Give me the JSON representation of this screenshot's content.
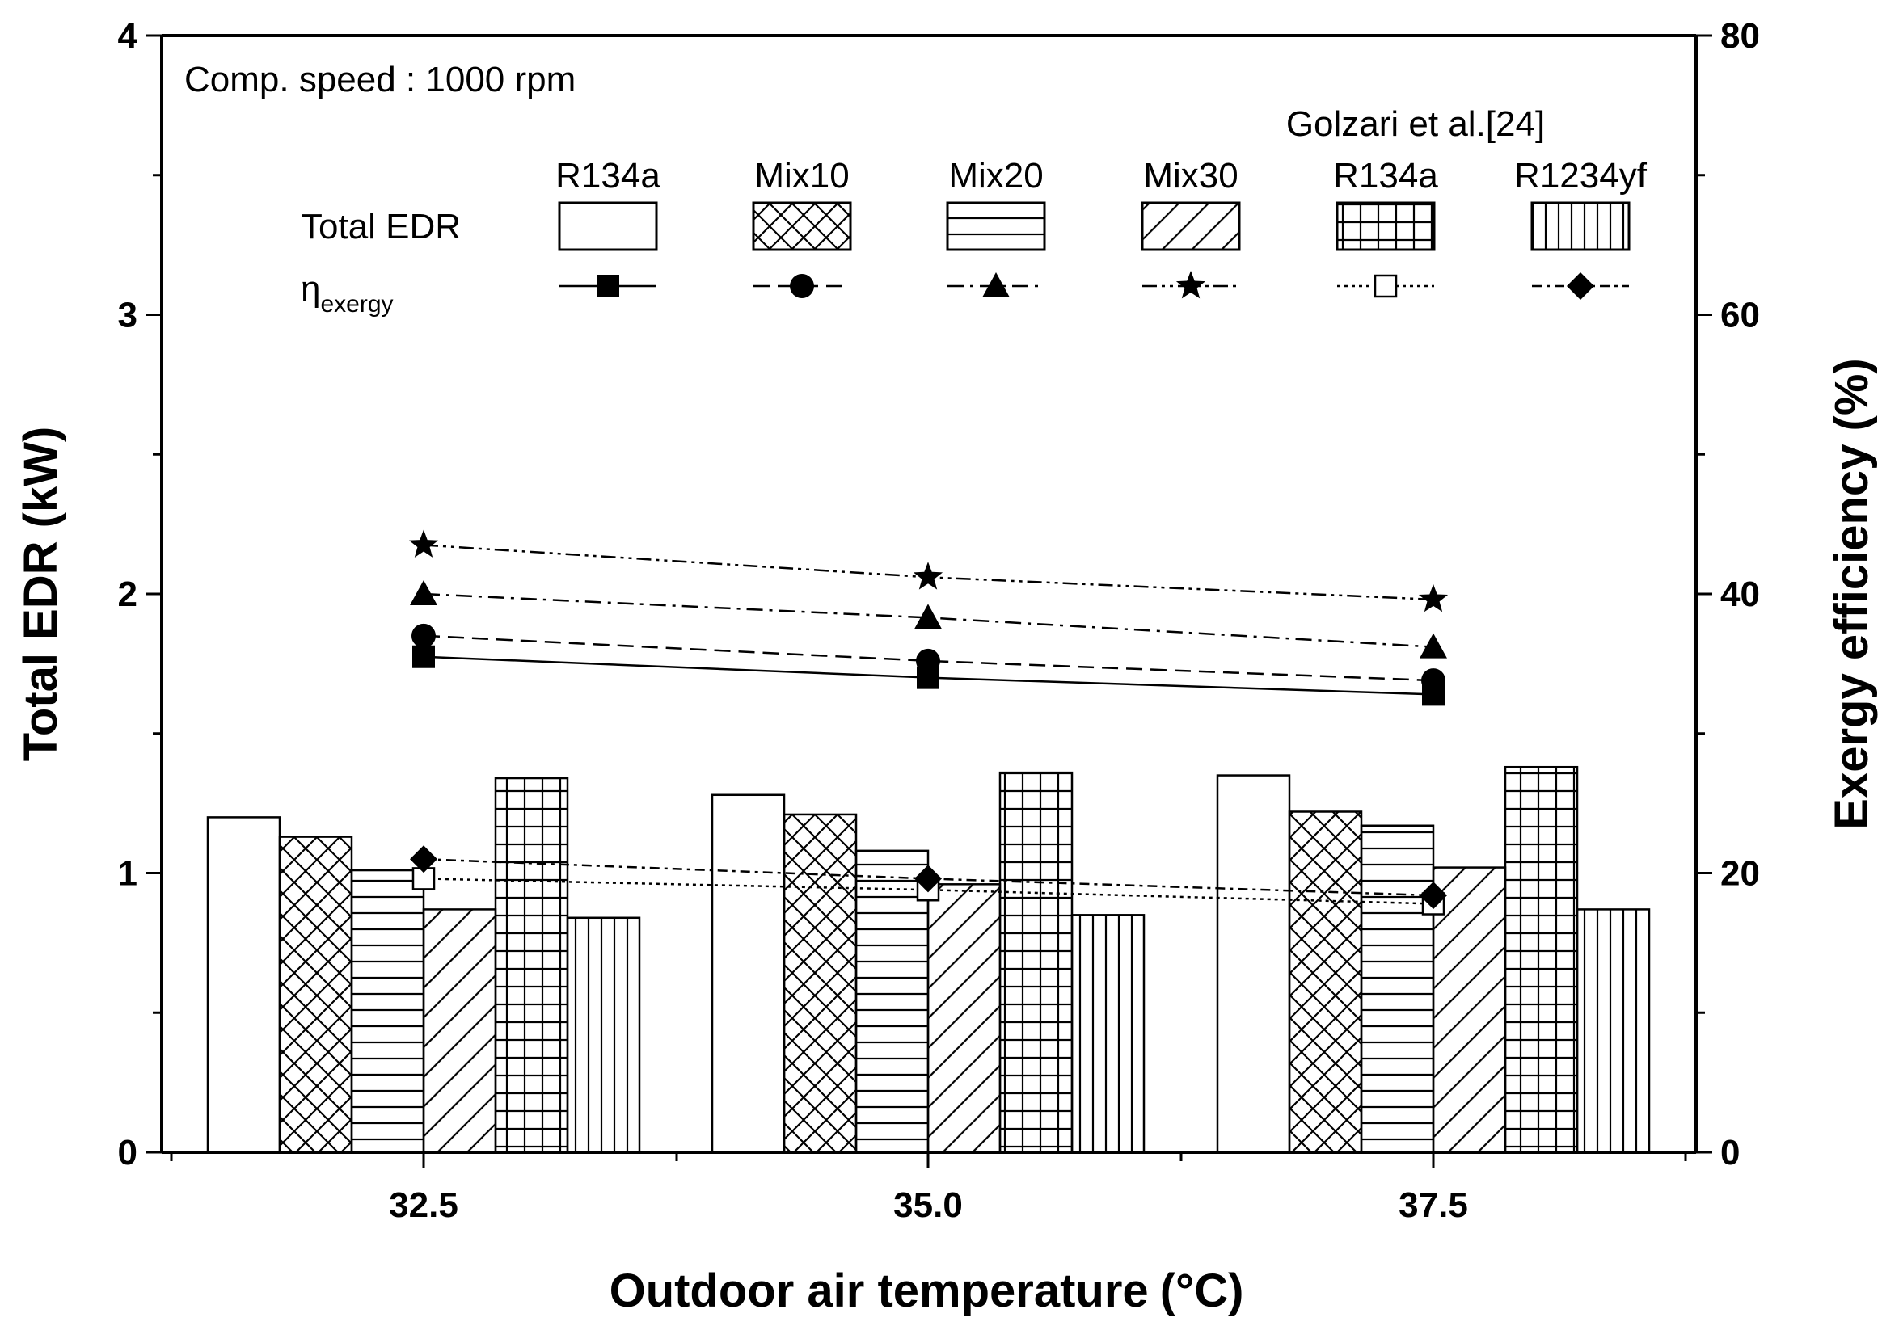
{
  "chart_data": {
    "type": "bar",
    "annotation": "Comp. speed : 1000 rpm",
    "xlabel": "Outdoor air temperature",
    "xlabel_unit": "(°C)",
    "ylabel_left": "Total EDR (kW)",
    "ylabel_right": "Exergy efficiency (%)",
    "categories": [
      "32.5",
      "35.0",
      "37.5"
    ],
    "ylim_left": [
      0,
      4
    ],
    "ylim_right": [
      0,
      80
    ],
    "yticks_left": [
      "0",
      "1",
      "2",
      "3",
      "4"
    ],
    "yticks_right": [
      "0",
      "20",
      "40",
      "60",
      "80"
    ],
    "legend": {
      "reference_label": "Golzari et al.[24]",
      "row_bar_label": "Total EDR",
      "row_line_label_main": "η",
      "row_line_label_sub": "exergy"
    },
    "bar_series": [
      {
        "name": "R134a",
        "pattern": "none",
        "values": [
          1.2,
          1.28,
          1.35
        ]
      },
      {
        "name": "Mix10",
        "pattern": "crosshatch",
        "values": [
          1.13,
          1.21,
          1.22
        ]
      },
      {
        "name": "Mix20",
        "pattern": "horizontal",
        "values": [
          1.01,
          1.08,
          1.17
        ]
      },
      {
        "name": "Mix30",
        "pattern": "diagonal",
        "values": [
          0.87,
          0.96,
          1.02
        ]
      },
      {
        "name": "R134a",
        "pattern": "grid",
        "values": [
          1.34,
          1.36,
          1.38
        ]
      },
      {
        "name": "R1234yf",
        "pattern": "vertical",
        "values": [
          0.84,
          0.85,
          0.87
        ]
      }
    ],
    "line_series": [
      {
        "name": "R134a",
        "marker": "square",
        "dash": "solid",
        "values": [
          35.5,
          34.0,
          32.8
        ]
      },
      {
        "name": "Mix10",
        "marker": "circle",
        "dash": "dashed",
        "values": [
          37.0,
          35.2,
          33.8
        ]
      },
      {
        "name": "Mix20",
        "marker": "triangle",
        "dash": "dashdot",
        "values": [
          40.0,
          38.3,
          36.2
        ]
      },
      {
        "name": "Mix30",
        "marker": "star",
        "dash": "dashdotdot",
        "values": [
          43.5,
          41.2,
          39.6
        ]
      },
      {
        "name": "R134a",
        "marker": "open-square",
        "dash": "dotted",
        "values": [
          19.6,
          18.8,
          17.8
        ]
      },
      {
        "name": "R1234yf",
        "marker": "diamond",
        "dash": "dashdot-fine",
        "values": [
          21.0,
          19.6,
          18.4
        ]
      }
    ]
  }
}
